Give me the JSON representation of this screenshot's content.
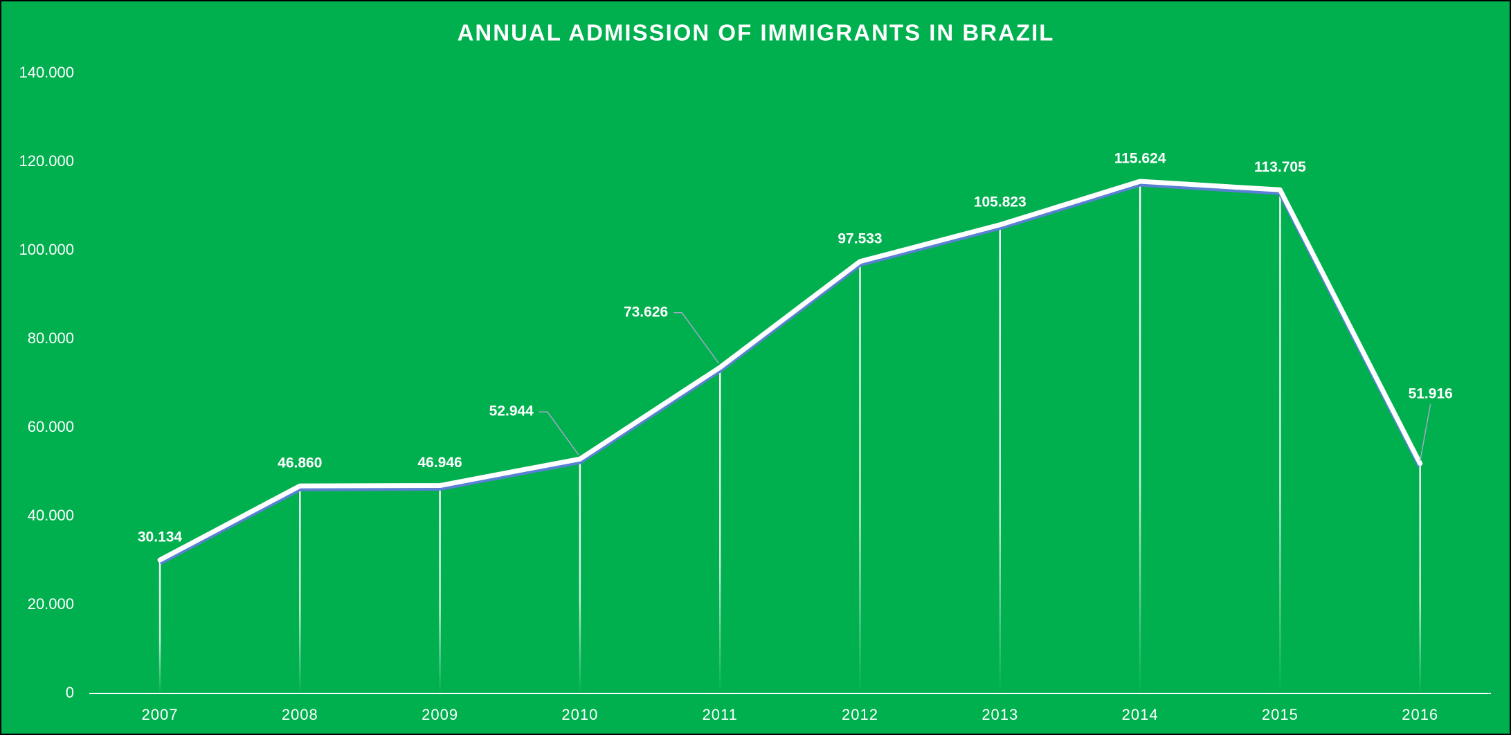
{
  "chart_data": {
    "type": "line",
    "title": "ANNUAL ADMISSION OF IMMIGRANTS IN BRAZIL",
    "categories": [
      "2007",
      "2008",
      "2009",
      "2010",
      "2011",
      "2012",
      "2013",
      "2014",
      "2015",
      "2016"
    ],
    "values": [
      30134,
      46860,
      46946,
      52944,
      73626,
      97533,
      105823,
      115624,
      113705,
      51916
    ],
    "value_labels": [
      "30.134",
      "46.860",
      "46.946",
      "52.944",
      "73.626",
      "97.533",
      "105.823",
      "115.624",
      "113.705",
      "51.916"
    ],
    "color": "#ffffff",
    "background": "#00b04f",
    "ylim": [
      0,
      140000
    ],
    "yticks": [
      0,
      {
        "value": 20000,
        "label": "20.000"
      },
      {
        "value": 40000,
        "label": "40.000"
      },
      {
        "value": 60000,
        "label": "60.000"
      },
      {
        "value": 80000,
        "label": "80.000"
      },
      {
        "value": 100000,
        "label": "100.000"
      },
      {
        "value": 120000,
        "label": "120.000"
      },
      {
        "value": 140000,
        "label": "140.000"
      }
    ],
    "grid": false
  }
}
